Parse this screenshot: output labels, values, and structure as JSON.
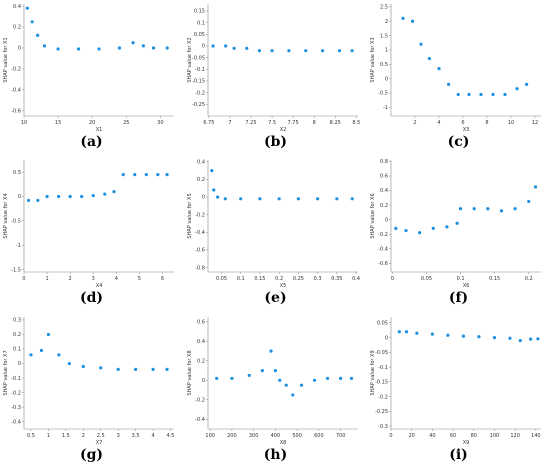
{
  "figure": {
    "panel_labels": [
      "(a)",
      "(b)",
      "(c)",
      "(d)",
      "(e)",
      "(f)",
      "(g)",
      "(h)",
      "(i)"
    ]
  },
  "chart_data": [
    {
      "type": "scatter",
      "label": "(a)",
      "xlabel": "X1",
      "ylabel": "SHAP value for X1",
      "xlim": [
        10,
        32
      ],
      "ylim": [
        -0.65,
        0.42
      ],
      "xticks": [
        10,
        15,
        20,
        25,
        30
      ],
      "yticks": [
        -0.6,
        -0.4,
        -0.2,
        0.0,
        0.2,
        0.4
      ],
      "color": "#1f8fe0",
      "series": [
        {
          "x": [
            10.5,
            11.2,
            12.0,
            13.0,
            15.0,
            18.0,
            21.0,
            24.0,
            26.0,
            27.5,
            29.0,
            31.0
          ],
          "y": [
            0.38,
            0.25,
            0.12,
            0.02,
            -0.01,
            -0.01,
            -0.01,
            0.0,
            0.05,
            0.02,
            0.0,
            0.0
          ]
        }
      ]
    },
    {
      "type": "scatter",
      "label": "(b)",
      "xlabel": "X2",
      "ylabel": "SHAP value for X2",
      "xlim": [
        6.74,
        8.52
      ],
      "ylim": [
        -0.3,
        0.18
      ],
      "xticks": [
        6.75,
        7.0,
        7.25,
        7.5,
        7.75,
        8.0,
        8.25,
        8.5
      ],
      "yticks": [
        -0.25,
        -0.2,
        -0.15,
        -0.1,
        -0.05,
        0.0,
        0.05,
        0.1,
        0.15
      ],
      "color": "#1f8fe0",
      "series": [
        {
          "x": [
            6.8,
            6.95,
            7.05,
            7.2,
            7.35,
            7.5,
            7.7,
            7.9,
            8.1,
            8.3,
            8.45
          ],
          "y": [
            0.0,
            0.0,
            -0.01,
            -0.01,
            -0.02,
            -0.02,
            -0.02,
            -0.02,
            -0.02,
            -0.02,
            -0.02
          ]
        }
      ]
    },
    {
      "type": "scatter",
      "label": "(c)",
      "xlabel": "X3",
      "ylabel": "SHAP value for X3",
      "xlim": [
        0,
        12.5
      ],
      "ylim": [
        -1.3,
        2.6
      ],
      "xticks": [
        2,
        4,
        6,
        8,
        10,
        12
      ],
      "yticks": [
        -1.0,
        -0.5,
        0.0,
        0.5,
        1.0,
        1.5,
        2.0,
        2.5
      ],
      "color": "#1f8fe0",
      "series": [
        {
          "x": [
            1.0,
            1.8,
            2.5,
            3.2,
            4.0,
            4.8,
            5.6,
            6.5,
            7.5,
            8.5,
            9.5,
            10.5,
            11.3
          ],
          "y": [
            2.1,
            2.0,
            1.2,
            0.7,
            0.35,
            -0.2,
            -0.55,
            -0.55,
            -0.55,
            -0.55,
            -0.55,
            -0.35,
            -0.2
          ]
        }
      ]
    },
    {
      "type": "scatter",
      "label": "(d)",
      "xlabel": "X4",
      "ylabel": "SHAP value for X4",
      "xlim": [
        0,
        6.5
      ],
      "ylim": [
        -1.55,
        0.75
      ],
      "xticks": [
        0,
        1,
        2,
        3,
        4,
        5,
        6
      ],
      "yticks": [
        -1.5,
        -1.0,
        -0.5,
        0.0,
        0.5
      ],
      "color": "#1f8fe0",
      "series": [
        {
          "x": [
            0.2,
            0.6,
            1.0,
            1.5,
            2.0,
            2.5,
            3.0,
            3.5,
            3.9,
            4.3,
            4.8,
            5.3,
            5.8,
            6.2
          ],
          "y": [
            -0.08,
            -0.08,
            0.0,
            0.0,
            0.0,
            0.0,
            0.02,
            0.05,
            0.1,
            0.45,
            0.45,
            0.45,
            0.45,
            0.45
          ]
        }
      ]
    },
    {
      "type": "scatter",
      "label": "(e)",
      "xlabel": "X5",
      "ylabel": "SHAP value for X5",
      "xlim": [
        0.015,
        0.405
      ],
      "ylim": [
        -0.85,
        0.42
      ],
      "xticks": [
        0.05,
        0.1,
        0.15,
        0.2,
        0.25,
        0.3,
        0.35,
        0.4
      ],
      "yticks": [
        -0.8,
        -0.6,
        -0.4,
        -0.2,
        0.0,
        0.2,
        0.4
      ],
      "color": "#1f8fe0",
      "series": [
        {
          "x": [
            0.025,
            0.03,
            0.04,
            0.06,
            0.1,
            0.15,
            0.2,
            0.25,
            0.3,
            0.35,
            0.39
          ],
          "y": [
            0.3,
            0.08,
            0.0,
            -0.02,
            -0.02,
            -0.02,
            -0.02,
            -0.02,
            -0.02,
            -0.02,
            -0.02
          ]
        }
      ]
    },
    {
      "type": "scatter",
      "label": "(f)",
      "xlabel": "X6",
      "ylabel": "SHAP value for X6",
      "xlim": [
        -0.002,
        0.218
      ],
      "ylim": [
        -0.72,
        0.82
      ],
      "xticks": [
        0.0,
        0.05,
        0.1,
        0.15,
        0.2
      ],
      "yticks": [
        -0.6,
        -0.4,
        -0.2,
        0.0,
        0.2,
        0.4,
        0.6,
        0.8
      ],
      "color": "#1f8fe0",
      "series": [
        {
          "x": [
            0.005,
            0.02,
            0.04,
            0.06,
            0.08,
            0.095,
            0.1,
            0.12,
            0.14,
            0.16,
            0.18,
            0.2,
            0.21
          ],
          "y": [
            -0.12,
            -0.15,
            -0.18,
            -0.12,
            -0.1,
            -0.05,
            0.15,
            0.15,
            0.15,
            0.12,
            0.15,
            0.25,
            0.45
          ]
        }
      ]
    },
    {
      "type": "scatter",
      "label": "(g)",
      "xlabel": "X7",
      "ylabel": "SHAP value for X7",
      "xlim": [
        0.3,
        4.6
      ],
      "ylim": [
        -0.45,
        0.32
      ],
      "xticks": [
        0.5,
        1.0,
        1.5,
        2.0,
        2.5,
        3.0,
        3.5,
        4.0,
        4.5
      ],
      "yticks": [
        -0.4,
        -0.3,
        -0.2,
        -0.1,
        0.0,
        0.1,
        0.2,
        0.3
      ],
      "color": "#1f8fe0",
      "series": [
        {
          "x": [
            0.5,
            0.8,
            1.0,
            1.3,
            1.6,
            2.0,
            2.5,
            3.0,
            3.5,
            4.0,
            4.4
          ],
          "y": [
            0.06,
            0.09,
            0.2,
            0.06,
            0.0,
            -0.02,
            -0.03,
            -0.04,
            -0.04,
            -0.04,
            -0.04
          ]
        }
      ]
    },
    {
      "type": "scatter",
      "label": "(h)",
      "xlabel": "X8",
      "ylabel": "SHAP value for X8",
      "xlim": [
        90,
        780
      ],
      "ylim": [
        -0.5,
        0.65
      ],
      "xticks": [
        100,
        200,
        300,
        400,
        500,
        600,
        700
      ],
      "yticks": [
        -0.4,
        -0.2,
        0.0,
        0.2,
        0.4,
        0.6
      ],
      "color": "#1f8fe0",
      "series": [
        {
          "x": [
            130,
            200,
            280,
            340,
            380,
            400,
            420,
            450,
            480,
            520,
            580,
            640,
            700,
            750
          ],
          "y": [
            0.02,
            0.02,
            0.05,
            0.1,
            0.3,
            0.1,
            0.0,
            -0.05,
            -0.15,
            -0.05,
            0.0,
            0.02,
            0.02,
            0.02
          ]
        }
      ]
    },
    {
      "type": "scatter",
      "label": "(i)",
      "xlabel": "X9",
      "ylabel": "SHAP value for X9",
      "xlim": [
        0,
        145
      ],
      "ylim": [
        -0.31,
        0.07
      ],
      "xticks": [
        0,
        20,
        40,
        60,
        80,
        100,
        120,
        140
      ],
      "yticks": [
        -0.3,
        -0.25,
        -0.2,
        -0.15,
        -0.1,
        -0.05,
        0.0,
        0.05
      ],
      "color": "#1f8fe0",
      "series": [
        {
          "x": [
            8,
            15,
            25,
            40,
            55,
            70,
            85,
            100,
            115,
            125,
            135,
            142
          ],
          "y": [
            0.02,
            0.02,
            0.015,
            0.012,
            0.008,
            0.005,
            0.003,
            0.0,
            -0.002,
            -0.01,
            -0.005,
            -0.004
          ]
        }
      ]
    }
  ]
}
